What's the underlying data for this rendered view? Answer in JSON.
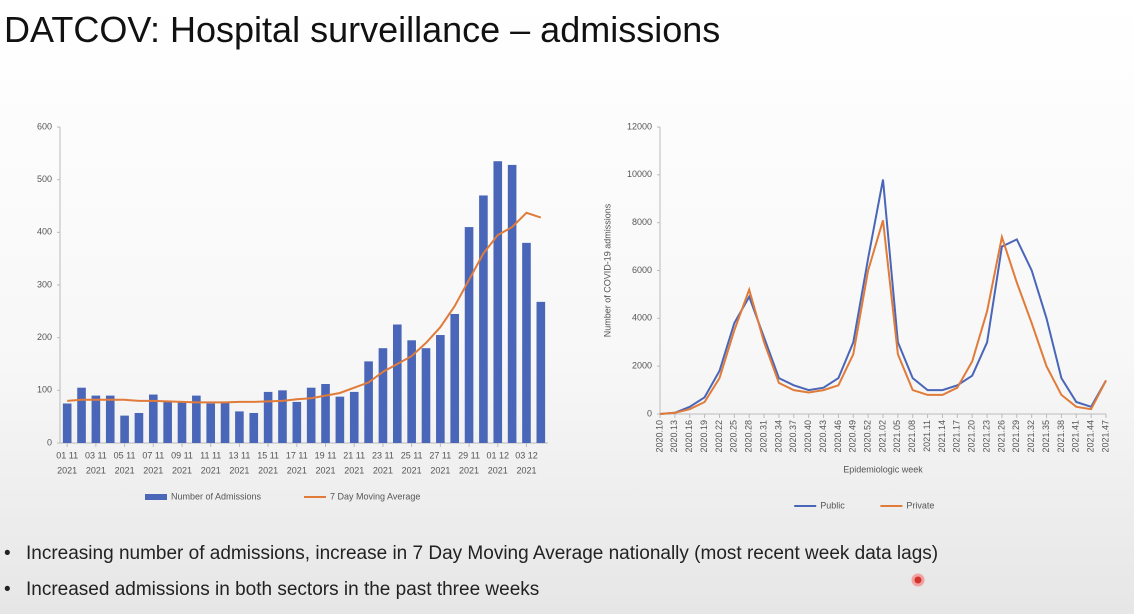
{
  "title": "DATCOV: Hospital surveillance – admissions",
  "bullets": [
    "Increasing number of admissions, increase in 7 Day Moving Average nationally (most recent week data lags)",
    "Increased admissions in both sectors in the past three weeks"
  ],
  "chart_data": [
    {
      "type": "bar_line",
      "categories": [
        "01 11",
        null,
        "03 11",
        null,
        "05 11",
        null,
        "07 11",
        null,
        "09 11",
        null,
        "11 11",
        null,
        "13 11",
        null,
        "15 11",
        null,
        "17 11",
        null,
        "19 11",
        null,
        "21 11",
        null,
        "23 11",
        null,
        "25 11",
        null,
        "27 11",
        null,
        "29 11",
        null,
        "01 12",
        null,
        "03 12",
        null
      ],
      "category_year": "2021",
      "series": [
        {
          "name": "Number of Admissions",
          "type": "bar",
          "color": "#4a66b8",
          "values": [
            75,
            105,
            90,
            90,
            52,
            57,
            92,
            80,
            78,
            90,
            75,
            78,
            60,
            57,
            97,
            100,
            78,
            105,
            112,
            88,
            97,
            155,
            180,
            225,
            195,
            180,
            205,
            245,
            410,
            470,
            535,
            528,
            380,
            268
          ]
        },
        {
          "name": "7 Day Moving Average",
          "type": "line",
          "color": "#e07b3a",
          "values": [
            80,
            82,
            82,
            82,
            82,
            80,
            80,
            79,
            78,
            77,
            77,
            77,
            78,
            78,
            79,
            80,
            83,
            85,
            90,
            95,
            105,
            115,
            135,
            150,
            165,
            190,
            220,
            260,
            310,
            360,
            395,
            410,
            437,
            428
          ]
        }
      ],
      "ylim": [
        0,
        600
      ],
      "yticks": [
        0,
        100,
        200,
        300,
        400,
        500,
        600
      ],
      "legend": "bottom"
    },
    {
      "type": "line",
      "categories": [
        "2020.10",
        "2020.13",
        "2020.16",
        "2020.19",
        "2020.22",
        "2020.25",
        "2020.28",
        "2020.31",
        "2020.34",
        "2020.37",
        "2020.40",
        "2020.43",
        "2020.46",
        "2020.49",
        "2020.52",
        "2021.02",
        "2021.05",
        "2021.08",
        "2021.11",
        "2021.14",
        "2021.17",
        "2021.20",
        "2021.23",
        "2021.26",
        "2021.29",
        "2021.32",
        "2021.35",
        "2021.38",
        "2021.41",
        "2021.44",
        "2021.47"
      ],
      "series": [
        {
          "name": "Public",
          "color": "#4a66b8",
          "values": [
            0,
            50,
            300,
            700,
            1800,
            3800,
            4900,
            3200,
            1500,
            1200,
            1000,
            1100,
            1500,
            3000,
            6500,
            9800,
            3000,
            1500,
            1000,
            1000,
            1200,
            1600,
            3000,
            7000,
            7300,
            6000,
            4000,
            1500,
            500,
            300,
            1400
          ]
        },
        {
          "name": "Private",
          "color": "#e07b3a",
          "values": [
            0,
            50,
            200,
            500,
            1500,
            3500,
            5200,
            3000,
            1300,
            1000,
            900,
            1000,
            1200,
            2500,
            6000,
            8100,
            2500,
            1000,
            800,
            800,
            1100,
            2200,
            4300,
            7400,
            5500,
            3800,
            2000,
            800,
            300,
            200,
            1400
          ]
        }
      ],
      "xlabel": "Epidemiologic week",
      "ylabel": "Number of COVID-19 admissions",
      "ylim": [
        0,
        12000
      ],
      "yticks": [
        0,
        2000,
        4000,
        6000,
        8000,
        10000,
        12000
      ],
      "legend": "bottom"
    }
  ]
}
